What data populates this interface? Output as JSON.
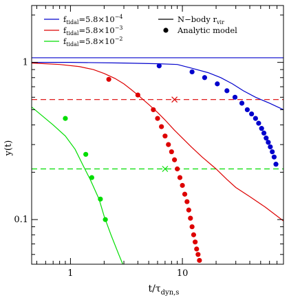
{
  "chart_data": {
    "type": "line",
    "xscale": "log",
    "yscale": "log",
    "xlim": [
      0.45,
      80
    ],
    "ylim": [
      0.052,
      2.3
    ],
    "xlabel": {
      "main": "t/τ",
      "sub": "dyn,s"
    },
    "ylabel": "y(t)",
    "xticks": [
      {
        "value": 1,
        "label": "1"
      },
      {
        "value": 10,
        "label": "10"
      }
    ],
    "yticks": [
      {
        "value": 0.1,
        "label": "0.1"
      },
      {
        "value": 1,
        "label": "1"
      }
    ],
    "legend": {
      "placement": "top",
      "entries": [
        {
          "kind": "line",
          "color": "#0000cc",
          "prefix": "f",
          "sub": "tidal",
          "suffix": "=5.8×10",
          "sup": "−4"
        },
        {
          "kind": "line",
          "color": "#dd0000",
          "prefix": "f",
          "sub": "tidal",
          "suffix": "=5.8×10",
          "sup": "−3"
        },
        {
          "kind": "line",
          "color": "#00dd00",
          "prefix": "f",
          "sub": "tidal",
          "suffix": "=5.8×10",
          "sup": "−2"
        },
        {
          "kind": "line",
          "color": "#000000",
          "prefix": "N−body r",
          "sub": "vir",
          "suffix": "",
          "sup": ""
        },
        {
          "kind": "point",
          "color": "#000000",
          "prefix": "Analytic model",
          "sub": "",
          "suffix": "",
          "sup": ""
        }
      ]
    },
    "hlines": [
      {
        "y": 1.07,
        "color": "#0000cc",
        "dashed": false
      },
      {
        "y": 0.58,
        "color": "#dd0000",
        "dashed": true
      },
      {
        "y": 0.21,
        "color": "#00dd00",
        "dashed": true
      }
    ],
    "crosses": [
      {
        "x": 8.5,
        "y": 0.58,
        "color": "#dd0000"
      },
      {
        "x": 7.0,
        "y": 0.21,
        "color": "#00dd00"
      }
    ],
    "series": [
      {
        "kind": "line",
        "color": "#0000cc",
        "x": [
          0.45,
          1,
          3,
          6,
          9,
          12,
          17,
          22,
          28,
          35,
          45,
          60,
          80
        ],
        "y": [
          1.0,
          1.0,
          0.99,
          0.98,
          0.97,
          0.92,
          0.86,
          0.8,
          0.73,
          0.66,
          0.6,
          0.55,
          0.5
        ]
      },
      {
        "kind": "line",
        "color": "#dd0000",
        "x": [
          0.45,
          0.8,
          1.2,
          1.6,
          2.0,
          2.5,
          3.0,
          3.5,
          4.0,
          5.0,
          6.0,
          7.0,
          8.5,
          10,
          12,
          15,
          20,
          25,
          30,
          40,
          55,
          80
        ],
        "y": [
          0.99,
          0.97,
          0.94,
          0.9,
          0.85,
          0.79,
          0.73,
          0.67,
          0.62,
          0.54,
          0.48,
          0.43,
          0.37,
          0.33,
          0.29,
          0.25,
          0.21,
          0.18,
          0.16,
          0.14,
          0.12,
          0.098
        ]
      },
      {
        "kind": "line",
        "color": "#00dd00",
        "x": [
          0.45,
          0.7,
          0.9,
          1.1,
          1.3,
          1.5,
          1.8,
          2.0,
          2.3,
          2.7,
          3.0
        ],
        "y": [
          0.52,
          0.4,
          0.34,
          0.28,
          0.22,
          0.18,
          0.135,
          0.105,
          0.08,
          0.06,
          0.05
        ]
      },
      {
        "kind": "points",
        "color": "#0000cc",
        "x": [
          6.2,
          12.2,
          15.8,
          20.5,
          25.0,
          29.5,
          34.0,
          38.0,
          41.5,
          45.0,
          48.0,
          51.0,
          53.5,
          56.0,
          58.5,
          61.0,
          63.5,
          66.0,
          68.5
        ],
        "y": [
          0.95,
          0.87,
          0.8,
          0.73,
          0.66,
          0.6,
          0.55,
          0.5,
          0.47,
          0.44,
          0.41,
          0.38,
          0.355,
          0.33,
          0.31,
          0.29,
          0.27,
          0.25,
          0.225
        ]
      },
      {
        "kind": "points",
        "color": "#dd0000",
        "x": [
          2.2,
          4.0,
          5.5,
          6.0,
          6.5,
          7.0,
          7.5,
          8.0,
          8.5,
          9.0,
          9.5,
          10.0,
          10.5,
          11.0,
          11.4,
          11.8,
          12.2,
          12.6,
          13.0,
          13.4,
          13.8,
          14.2
        ],
        "y": [
          0.78,
          0.62,
          0.5,
          0.44,
          0.39,
          0.34,
          0.3,
          0.27,
          0.24,
          0.21,
          0.185,
          0.165,
          0.145,
          0.13,
          0.115,
          0.102,
          0.09,
          0.08,
          0.072,
          0.065,
          0.06,
          0.055
        ]
      },
      {
        "kind": "points",
        "color": "#00dd00",
        "x": [
          0.9,
          1.37,
          1.55,
          1.85,
          2.05
        ],
        "y": [
          0.44,
          0.26,
          0.185,
          0.135,
          0.1
        ]
      }
    ]
  }
}
